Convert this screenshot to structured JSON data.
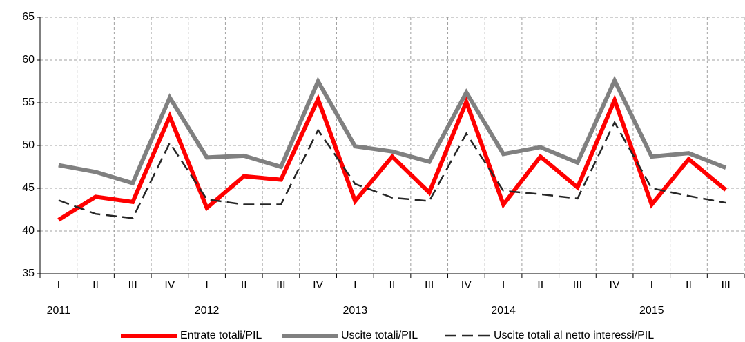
{
  "chart_data": {
    "type": "line",
    "categories": [
      "I",
      "II",
      "III",
      "IV",
      "I",
      "II",
      "III",
      "IV",
      "I",
      "II",
      "III",
      "IV",
      "I",
      "II",
      "III",
      "IV",
      "I",
      "II",
      "III"
    ],
    "years": [
      "2011",
      "2012",
      "2013",
      "2014",
      "2015"
    ],
    "series": [
      {
        "name": "Entrate totali/PIL",
        "color": "#ff0000",
        "dashed": false,
        "values": [
          41.3,
          44.0,
          43.4,
          53.4,
          42.7,
          46.4,
          46.0,
          55.4,
          43.5,
          48.7,
          44.5,
          55.1,
          43.1,
          48.7,
          45.1,
          55.3,
          43.1,
          48.4,
          44.8
        ]
      },
      {
        "name": "Uscite totali/PIL",
        "color": "#808080",
        "dashed": false,
        "values": [
          47.7,
          46.9,
          45.6,
          55.6,
          48.6,
          48.8,
          47.5,
          57.5,
          49.9,
          49.3,
          48.1,
          56.2,
          49.0,
          49.8,
          48.0,
          57.6,
          48.7,
          49.1,
          47.4
        ]
      },
      {
        "name": "Uscite totali al netto interessi/PIL",
        "color": "#262626",
        "dashed": true,
        "values": [
          43.6,
          42.0,
          41.5,
          50.3,
          43.7,
          43.1,
          43.1,
          51.8,
          45.5,
          43.9,
          43.5,
          51.4,
          44.7,
          44.3,
          43.8,
          52.7,
          45.0,
          44.1,
          43.3
        ]
      }
    ],
    "ylim": [
      35,
      65
    ],
    "yticks": [
      35,
      40,
      45,
      50,
      55,
      60,
      65
    ],
    "grid": true,
    "legend": "bottom"
  }
}
